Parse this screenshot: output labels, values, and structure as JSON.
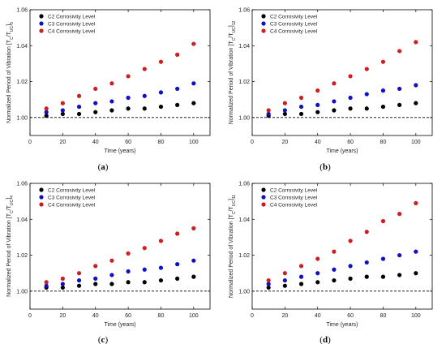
{
  "chart_data": [
    {
      "type": "scatter",
      "panel_label": "(a)",
      "xlabel": "Time (years)",
      "ylabel_main": "Normalized Period of Vibration [T",
      "ylabel_sub1": "C",
      "ylabel_mid": "/T",
      "ylabel_sub2": "UC",
      "ylabel_end": "]",
      "ylabel_index": "5",
      "xlim": [
        0,
        110
      ],
      "ylim": [
        0.99,
        1.06
      ],
      "xticks": [
        0,
        20,
        40,
        60,
        80,
        100
      ],
      "yticks": [
        1.0,
        1.02,
        1.04,
        1.06
      ],
      "baseline": 1.0,
      "legend_position": "top-left",
      "x": [
        10,
        20,
        30,
        40,
        50,
        60,
        70,
        80,
        90,
        100
      ],
      "series": [
        {
          "name": "C2 Corrosivity Level",
          "color": "#000000",
          "values": [
            1.001,
            1.002,
            1.002,
            1.003,
            1.004,
            1.005,
            1.005,
            1.006,
            1.007,
            1.008
          ]
        },
        {
          "name": "C3 Corrosivity Level",
          "color": "#1010c0",
          "values": [
            1.003,
            1.004,
            1.006,
            1.008,
            1.009,
            1.011,
            1.012,
            1.014,
            1.016,
            1.019
          ]
        },
        {
          "name": "C4 Corrosivity Level",
          "color": "#cc1f1f",
          "values": [
            1.005,
            1.008,
            1.012,
            1.016,
            1.019,
            1.023,
            1.027,
            1.031,
            1.035,
            1.041
          ]
        }
      ]
    },
    {
      "type": "scatter",
      "panel_label": "(b)",
      "xlabel": "Time (years)",
      "ylabel_main": "Normalized Period of Vibration [T",
      "ylabel_sub1": "C",
      "ylabel_mid": "/T",
      "ylabel_sub2": "UC",
      "ylabel_end": "]",
      "ylabel_index": "12",
      "xlim": [
        0,
        110
      ],
      "ylim": [
        0.99,
        1.06
      ],
      "xticks": [
        0,
        20,
        40,
        60,
        80,
        100
      ],
      "yticks": [
        1.0,
        1.02,
        1.04,
        1.06
      ],
      "baseline": 1.0,
      "legend_position": "top-left",
      "x": [
        10,
        20,
        30,
        40,
        50,
        60,
        70,
        80,
        90,
        100
      ],
      "series": [
        {
          "name": "C2 Corrosivity Level",
          "color": "#000000",
          "values": [
            1.001,
            1.002,
            1.002,
            1.003,
            1.004,
            1.005,
            1.005,
            1.006,
            1.007,
            1.008
          ]
        },
        {
          "name": "C3 Corrosivity Level",
          "color": "#1010c0",
          "values": [
            1.002,
            1.004,
            1.006,
            1.007,
            1.009,
            1.011,
            1.013,
            1.015,
            1.016,
            1.018
          ]
        },
        {
          "name": "C4 Corrosivity Level",
          "color": "#cc1f1f",
          "values": [
            1.004,
            1.008,
            1.011,
            1.015,
            1.019,
            1.023,
            1.027,
            1.031,
            1.037,
            1.042
          ]
        }
      ]
    },
    {
      "type": "scatter",
      "panel_label": "(c)",
      "xlabel": "Time (years)",
      "ylabel_main": "Normalized Period of Vibration [T",
      "ylabel_sub1": "C",
      "ylabel_mid": "/T",
      "ylabel_sub2": "UC",
      "ylabel_end": "]",
      "ylabel_index": "4",
      "xlim": [
        0,
        110
      ],
      "ylim": [
        0.99,
        1.06
      ],
      "xticks": [
        0,
        20,
        40,
        60,
        80,
        100
      ],
      "yticks": [
        1.0,
        1.02,
        1.04,
        1.06
      ],
      "baseline": 1.0,
      "legend_position": "top-left",
      "x": [
        10,
        20,
        30,
        40,
        50,
        60,
        70,
        80,
        90,
        100
      ],
      "series": [
        {
          "name": "C2 Corrosivity Level",
          "color": "#000000",
          "values": [
            1.002,
            1.002,
            1.003,
            1.004,
            1.004,
            1.005,
            1.005,
            1.006,
            1.007,
            1.008
          ]
        },
        {
          "name": "C3 Corrosivity Level",
          "color": "#1010c0",
          "values": [
            1.003,
            1.004,
            1.006,
            1.007,
            1.009,
            1.011,
            1.012,
            1.013,
            1.015,
            1.017
          ]
        },
        {
          "name": "C4 Corrosivity Level",
          "color": "#cc1f1f",
          "values": [
            1.005,
            1.007,
            1.01,
            1.014,
            1.017,
            1.021,
            1.024,
            1.028,
            1.032,
            1.035
          ]
        }
      ]
    },
    {
      "type": "scatter",
      "panel_label": "(d)",
      "xlabel": "Time (years)",
      "ylabel_main": "Normalized Period of Vibration [T",
      "ylabel_sub1": "C",
      "ylabel_mid": "/T",
      "ylabel_sub2": "UC",
      "ylabel_end": "]",
      "ylabel_index": "11",
      "xlim": [
        0,
        110
      ],
      "ylim": [
        0.99,
        1.06
      ],
      "xticks": [
        0,
        20,
        40,
        60,
        80,
        100
      ],
      "yticks": [
        1.0,
        1.02,
        1.04,
        1.06
      ],
      "baseline": 1.0,
      "legend_position": "top-left",
      "x": [
        10,
        20,
        30,
        40,
        50,
        60,
        70,
        80,
        90,
        100
      ],
      "series": [
        {
          "name": "C2 Corrosivity Level",
          "color": "#000000",
          "values": [
            1.002,
            1.003,
            1.004,
            1.005,
            1.006,
            1.007,
            1.008,
            1.008,
            1.009,
            1.01
          ]
        },
        {
          "name": "C3 Corrosivity Level",
          "color": "#1010c0",
          "values": [
            1.004,
            1.006,
            1.008,
            1.01,
            1.012,
            1.014,
            1.016,
            1.018,
            1.02,
            1.022
          ]
        },
        {
          "name": "C4 Corrosivity Level",
          "color": "#cc1f1f",
          "values": [
            1.006,
            1.01,
            1.014,
            1.018,
            1.022,
            1.028,
            1.033,
            1.039,
            1.043,
            1.049
          ]
        }
      ]
    }
  ]
}
